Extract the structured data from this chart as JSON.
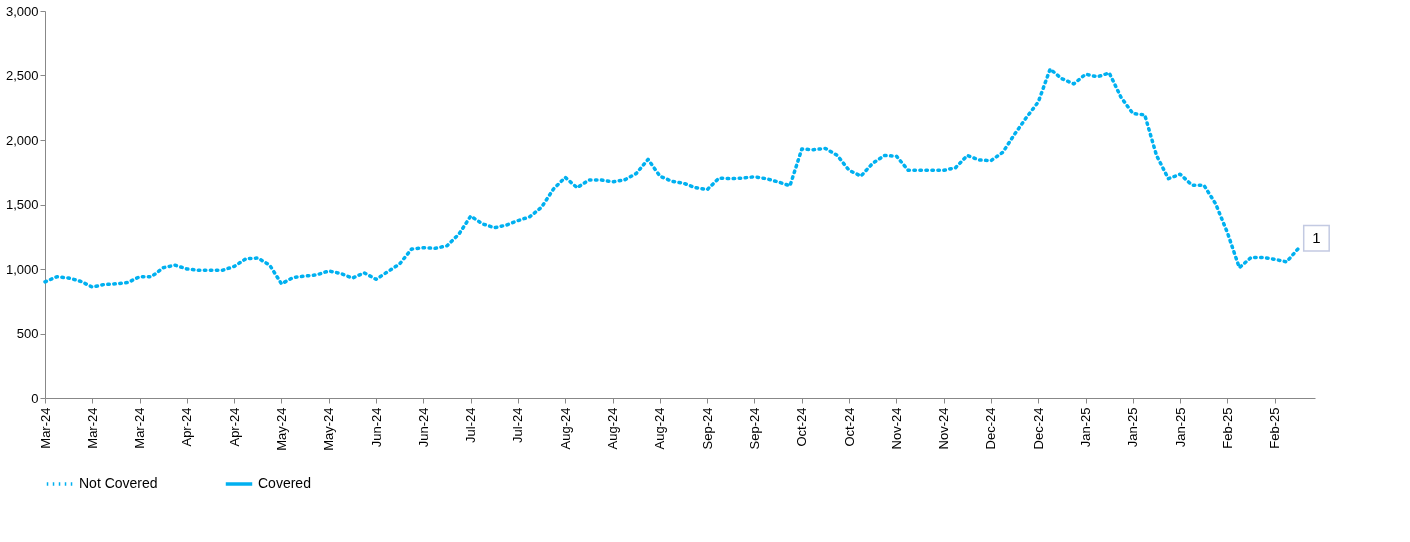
{
  "chart_data": {
    "type": "line",
    "categories": [
      "Mar-24",
      null,
      null,
      null,
      "Mar-24",
      null,
      null,
      null,
      "Mar-24",
      null,
      null,
      null,
      "Apr-24",
      null,
      null,
      null,
      "Apr-24",
      null,
      null,
      null,
      "May-24",
      null,
      null,
      null,
      "May-24",
      null,
      null,
      null,
      "Jun-24",
      null,
      null,
      null,
      "Jun-24",
      null,
      null,
      null,
      "Jul-24",
      null,
      null,
      null,
      "Jul-24",
      null,
      null,
      null,
      "Aug-24",
      null,
      null,
      null,
      "Aug-24",
      null,
      null,
      null,
      "Aug-24",
      null,
      null,
      null,
      "Sep-24",
      null,
      null,
      null,
      "Sep-24",
      null,
      null,
      null,
      "Oct-24",
      null,
      null,
      null,
      "Oct-24",
      null,
      null,
      null,
      "Nov-24",
      null,
      null,
      null,
      "Nov-24",
      null,
      null,
      null,
      "Dec-24",
      null,
      null,
      null,
      "Dec-24",
      null,
      null,
      null,
      "Jan-25",
      null,
      null,
      null,
      "Jan-25",
      null,
      null,
      null,
      "Jan-25",
      null,
      null,
      null,
      "Feb-25",
      null,
      null,
      null,
      "Feb-25",
      null,
      null
    ],
    "series": [
      {
        "name": "Not Covered",
        "color": "#00b0f0",
        "line_style": "dotted",
        "values": [
          900,
          940,
          930,
          905,
          860,
          880,
          885,
          895,
          940,
          940,
          1010,
          1030,
          1000,
          990,
          990,
          990,
          1020,
          1080,
          1085,
          1030,
          885,
          935,
          945,
          955,
          985,
          965,
          930,
          970,
          920,
          980,
          1040,
          1155,
          1165,
          1160,
          1180,
          1270,
          1410,
          1350,
          1320,
          1340,
          1375,
          1405,
          1480,
          1620,
          1710,
          1630,
          1690,
          1690,
          1675,
          1690,
          1740,
          1850,
          1720,
          1680,
          1665,
          1630,
          1615,
          1705,
          1700,
          1705,
          1715,
          1700,
          1675,
          1645,
          1930,
          1925,
          1935,
          1880,
          1765,
          1720,
          1820,
          1880,
          1875,
          1765,
          1765,
          1765,
          1765,
          1785,
          1880,
          1845,
          1840,
          1905,
          2045,
          2175,
          2295,
          2550,
          2475,
          2435,
          2510,
          2490,
          2520,
          2330,
          2205,
          2195,
          1880,
          1700,
          1735,
          1650,
          1650,
          1505,
          1280,
          1010,
          1090,
          1090,
          1075,
          1055,
          1160
        ]
      },
      {
        "name": "Covered",
        "color": "#00b0f0",
        "line_style": "solid",
        "values": [
          null,
          null,
          null,
          null,
          null,
          null,
          null,
          null,
          null,
          null,
          null,
          null,
          null,
          null,
          null,
          null,
          null,
          null,
          null,
          null,
          null,
          null,
          null,
          null,
          null,
          null,
          null,
          null,
          null,
          null,
          null,
          null,
          null,
          null,
          null,
          null,
          null,
          null,
          null,
          null,
          null,
          null,
          null,
          null,
          null,
          null,
          null,
          null,
          null,
          null,
          null,
          null,
          null,
          null,
          null,
          null,
          null,
          null,
          null,
          null,
          null,
          null,
          null,
          null,
          null,
          null,
          null,
          null,
          null,
          null,
          null,
          null,
          null,
          null,
          null,
          null,
          null,
          null,
          null,
          null,
          null,
          null,
          null,
          null,
          null,
          null,
          null,
          null,
          null,
          null,
          null,
          null,
          null,
          null,
          null,
          null,
          null,
          null,
          null,
          null,
          null,
          null,
          null,
          null,
          null,
          null,
          null
        ]
      }
    ],
    "ylim": [
      0,
      3000
    ],
    "yticks": [
      {
        "value": 0,
        "label": "0"
      },
      {
        "value": 500,
        "label": "500"
      },
      {
        "value": 1000,
        "label": "1,000"
      },
      {
        "value": 1500,
        "label": "1,500"
      },
      {
        "value": 2000,
        "label": "2,000"
      },
      {
        "value": 2500,
        "label": "2,500"
      },
      {
        "value": 3000,
        "label": "3,000"
      }
    ],
    "annotations": [
      "1"
    ],
    "legend": "bottom",
    "grid": false
  }
}
